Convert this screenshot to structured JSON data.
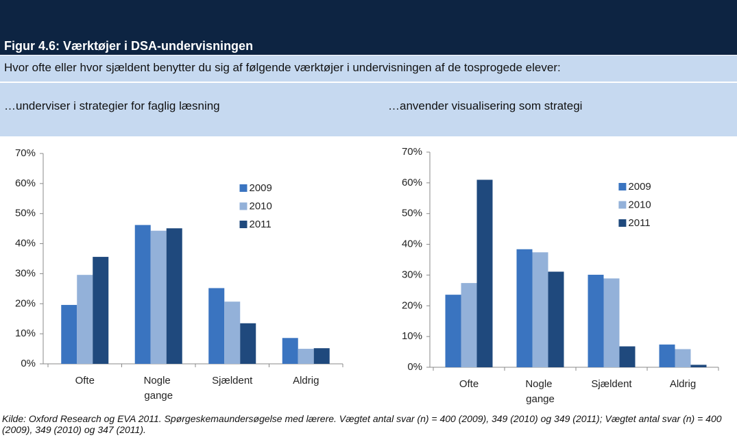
{
  "figure_title": "Figur 4.6: Værktøjer i DSA-undervisningen",
  "question": "Hvor ofte eller hvor sjældent benytter du sig af følgende værktøjer i undervisningen af de tosprogede elever:",
  "source": "Kilde: Oxford Research og EVA 2011. Spørgeskemaundersøgelse med lærere. Vægtet antal svar (n) = 400 (2009), 349 (2010) og 349 (2011); Vægtet antal svar (n) = 400 (2009), 349 (2010) og 347 (2011).",
  "chart_data": [
    {
      "type": "bar",
      "title": "…underviser i strategier for faglig læsning",
      "categories": [
        "Ofte",
        "Nogle gange",
        "Sjældent",
        "Aldrig"
      ],
      "series": [
        {
          "name": "2009",
          "color": "#3a74c0",
          "values": [
            19.6,
            46.2,
            25.2,
            8.6
          ]
        },
        {
          "name": "2010",
          "color": "#93b1d9",
          "values": [
            29.6,
            44.3,
            20.7,
            5.0
          ]
        },
        {
          "name": "2011",
          "color": "#1f497d",
          "values": [
            35.6,
            45.1,
            13.5,
            5.2
          ]
        }
      ],
      "ylim": [
        0,
        70
      ],
      "yticks": [
        {
          "value": 0,
          "label": "0%"
        },
        {
          "value": 10,
          "label": "10%"
        },
        {
          "value": 20,
          "label": "20%"
        },
        {
          "value": 30,
          "label": "30%"
        },
        {
          "value": 40,
          "label": "40%"
        },
        {
          "value": 50,
          "label": "50%"
        },
        {
          "value": 60,
          "label": "60%"
        },
        {
          "value": 70,
          "label": "70%"
        }
      ],
      "grid": false,
      "legend": "upper right"
    },
    {
      "type": "bar",
      "title": "…anvender visualisering som strategi",
      "categories": [
        "Ofte",
        "Nogle gange",
        "Sjældent",
        "Aldrig"
      ],
      "series": [
        {
          "name": "2009",
          "color": "#3a74c0",
          "values": [
            23.6,
            38.4,
            30.1,
            7.4
          ]
        },
        {
          "name": "2010",
          "color": "#93b1d9",
          "values": [
            27.4,
            37.4,
            28.9,
            5.9
          ]
        },
        {
          "name": "2011",
          "color": "#1f497d",
          "values": [
            61.0,
            31.1,
            6.8,
            0.8
          ]
        }
      ],
      "ylim": [
        0,
        70
      ],
      "yticks": [
        {
          "value": 0,
          "label": "0%"
        },
        {
          "value": 10,
          "label": "10%"
        },
        {
          "value": 20,
          "label": "20%"
        },
        {
          "value": 30,
          "label": "30%"
        },
        {
          "value": 40,
          "label": "40%"
        },
        {
          "value": 50,
          "label": "50%"
        },
        {
          "value": 60,
          "label": "60%"
        },
        {
          "value": 70,
          "label": "70%"
        }
      ],
      "grid": false,
      "legend": "upper right"
    }
  ]
}
